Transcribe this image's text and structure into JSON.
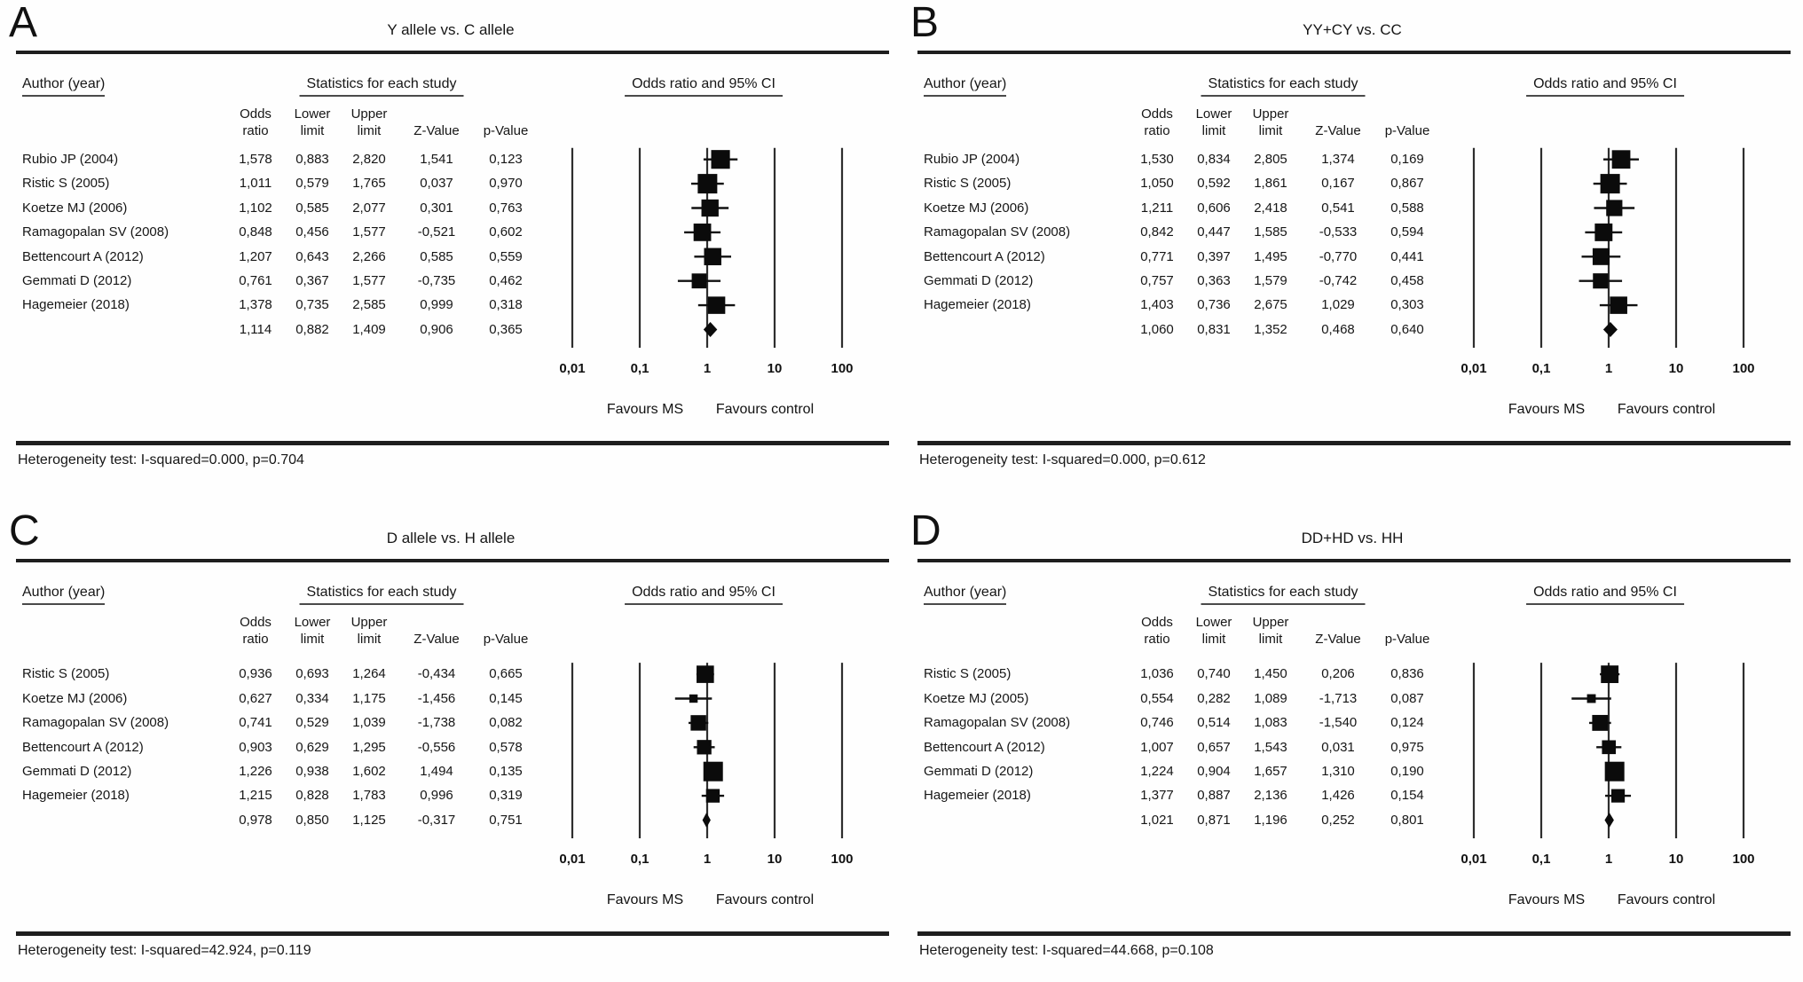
{
  "figure": {
    "bg": "#fefefe",
    "ink": "#161616",
    "axis_ticks": [
      "0,01",
      "0,1",
      "1",
      "10",
      "100"
    ],
    "favours_left": "Favours MS",
    "favours_right": "Favours control",
    "col_headers": {
      "author": "Author (year)",
      "stats": "Statistics for each study",
      "plot": "Odds ratio and 95% CI"
    },
    "sub_headers": {
      "odds_l1": "Odds",
      "odds_l2": "ratio",
      "lower_l1": "Lower",
      "lower_l2": "limit",
      "upper_l1": "Upper",
      "upper_l2": "limit",
      "z": "Z-Value",
      "p": "p-Value"
    },
    "panels": [
      {
        "label": "A",
        "title": "Y allele vs. C allele",
        "rows": [
          {
            "author": "Rubio JP (2004)",
            "or": "1,578",
            "lower": "0,883",
            "upper": "2,820",
            "z": "1,541",
            "p": "0,123"
          },
          {
            "author": "Ristic S (2005)",
            "or": "1,011",
            "lower": "0,579",
            "upper": "1,765",
            "z": "0,037",
            "p": "0,970"
          },
          {
            "author": "Koetze MJ (2006)",
            "or": "1,102",
            "lower": "0,585",
            "upper": "2,077",
            "z": "0,301",
            "p": "0,763"
          },
          {
            "author": "Ramagopalan SV (2008)",
            "or": "0,848",
            "lower": "0,456",
            "upper": "1,577",
            "z": "-0,521",
            "p": "0,602"
          },
          {
            "author": "Bettencourt A (2012)",
            "or": "1,207",
            "lower": "0,643",
            "upper": "2,266",
            "z": "0,585",
            "p": "0,559"
          },
          {
            "author": "Gemmati D (2012)",
            "or": "0,761",
            "lower": "0,367",
            "upper": "1,577",
            "z": "-0,735",
            "p": "0,462"
          },
          {
            "author": "Hagemeier (2018)",
            "or": "1,378",
            "lower": "0,735",
            "upper": "2,585",
            "z": "0,999",
            "p": "0,318"
          }
        ],
        "summary": {
          "author": "",
          "or": "1,114",
          "lower": "0,882",
          "upper": "1,409",
          "z": "0,906",
          "p": "0,365"
        },
        "heterogeneity": "Heterogeneity test: I-squared=0.000, p=0.704"
      },
      {
        "label": "B",
        "title": "YY+CY vs. CC",
        "rows": [
          {
            "author": "Rubio JP (2004)",
            "or": "1,530",
            "lower": "0,834",
            "upper": "2,805",
            "z": "1,374",
            "p": "0,169"
          },
          {
            "author": "Ristic S (2005)",
            "or": "1,050",
            "lower": "0,592",
            "upper": "1,861",
            "z": "0,167",
            "p": "0,867"
          },
          {
            "author": "Koetze MJ (2006)",
            "or": "1,211",
            "lower": "0,606",
            "upper": "2,418",
            "z": "0,541",
            "p": "0,588"
          },
          {
            "author": "Ramagopalan SV (2008)",
            "or": "0,842",
            "lower": "0,447",
            "upper": "1,585",
            "z": "-0,533",
            "p": "0,594"
          },
          {
            "author": "Bettencourt A (2012)",
            "or": "0,771",
            "lower": "0,397",
            "upper": "1,495",
            "z": "-0,770",
            "p": "0,441"
          },
          {
            "author": "Gemmati D (2012)",
            "or": "0,757",
            "lower": "0,363",
            "upper": "1,579",
            "z": "-0,742",
            "p": "0,458"
          },
          {
            "author": "Hagemeier (2018)",
            "or": "1,403",
            "lower": "0,736",
            "upper": "2,675",
            "z": "1,029",
            "p": "0,303"
          }
        ],
        "summary": {
          "author": "",
          "or": "1,060",
          "lower": "0,831",
          "upper": "1,352",
          "z": "0,468",
          "p": "0,640"
        },
        "heterogeneity": "Heterogeneity test: I-squared=0.000, p=0.612"
      },
      {
        "label": "C",
        "title": "D allele vs. H allele",
        "rows": [
          {
            "author": "Ristic S (2005)",
            "or": "0,936",
            "lower": "0,693",
            "upper": "1,264",
            "z": "-0,434",
            "p": "0,665"
          },
          {
            "author": "Koetze MJ (2006)",
            "or": "0,627",
            "lower": "0,334",
            "upper": "1,175",
            "z": "-1,456",
            "p": "0,145"
          },
          {
            "author": "Ramagopalan SV (2008)",
            "or": "0,741",
            "lower": "0,529",
            "upper": "1,039",
            "z": "-1,738",
            "p": "0,082"
          },
          {
            "author": "Bettencourt A (2012)",
            "or": "0,903",
            "lower": "0,629",
            "upper": "1,295",
            "z": "-0,556",
            "p": "0,578"
          },
          {
            "author": "Gemmati D (2012)",
            "or": "1,226",
            "lower": "0,938",
            "upper": "1,602",
            "z": "1,494",
            "p": "0,135"
          },
          {
            "author": "Hagemeier (2018)",
            "or": "1,215",
            "lower": "0,828",
            "upper": "1,783",
            "z": "0,996",
            "p": "0,319"
          }
        ],
        "summary": {
          "author": "",
          "or": "0,978",
          "lower": "0,850",
          "upper": "1,125",
          "z": "-0,317",
          "p": "0,751"
        },
        "heterogeneity": "Heterogeneity test: I-squared=42.924, p=0.119"
      },
      {
        "label": "D",
        "title": "DD+HD vs. HH",
        "rows": [
          {
            "author": "Ristic S (2005)",
            "or": "1,036",
            "lower": "0,740",
            "upper": "1,450",
            "z": "0,206",
            "p": "0,836"
          },
          {
            "author": "Koetze MJ (2005)",
            "or": "0,554",
            "lower": "0,282",
            "upper": "1,089",
            "z": "-1,713",
            "p": "0,087"
          },
          {
            "author": "Ramagopalan SV (2008)",
            "or": "0,746",
            "lower": "0,514",
            "upper": "1,083",
            "z": "-1,540",
            "p": "0,124"
          },
          {
            "author": "Bettencourt A (2012)",
            "or": "1,007",
            "lower": "0,657",
            "upper": "1,543",
            "z": "0,031",
            "p": "0,975"
          },
          {
            "author": "Gemmati D (2012)",
            "or": "1,224",
            "lower": "0,904",
            "upper": "1,657",
            "z": "1,310",
            "p": "0,190"
          },
          {
            "author": "Hagemeier (2018)",
            "or": "1,377",
            "lower": "0,887",
            "upper": "2,136",
            "z": "1,426",
            "p": "0,154"
          }
        ],
        "summary": {
          "author": "",
          "or": "1,021",
          "lower": "0,871",
          "upper": "1,196",
          "z": "0,252",
          "p": "0,801"
        },
        "heterogeneity": "Heterogeneity test: I-squared=44.668, p=0.108"
      }
    ]
  },
  "chart_data": [
    {
      "type": "scatter",
      "variant": "forest_plot",
      "title": "Y allele vs. C allele",
      "x_scale": "log",
      "xlim": [
        0.01,
        100
      ],
      "x_ticks": [
        0.01,
        0.1,
        1,
        10,
        100
      ],
      "x_tick_labels": [
        "0,01",
        "0,1",
        "1",
        "10",
        "100"
      ],
      "direction_labels": {
        "left": "Favours MS",
        "right": "Favours control"
      },
      "studies": [
        {
          "name": "Rubio JP (2004)",
          "or": 1.578,
          "ci_low": 0.883,
          "ci_high": 2.82,
          "z": 1.541,
          "p": 0.123
        },
        {
          "name": "Ristic S (2005)",
          "or": 1.011,
          "ci_low": 0.579,
          "ci_high": 1.765,
          "z": 0.037,
          "p": 0.97
        },
        {
          "name": "Koetze MJ (2006)",
          "or": 1.102,
          "ci_low": 0.585,
          "ci_high": 2.077,
          "z": 0.301,
          "p": 0.763
        },
        {
          "name": "Ramagopalan SV (2008)",
          "or": 0.848,
          "ci_low": 0.456,
          "ci_high": 1.577,
          "z": -0.521,
          "p": 0.602
        },
        {
          "name": "Bettencourt A (2012)",
          "or": 1.207,
          "ci_low": 0.643,
          "ci_high": 2.266,
          "z": 0.585,
          "p": 0.559
        },
        {
          "name": "Gemmati D (2012)",
          "or": 0.761,
          "ci_low": 0.367,
          "ci_high": 1.577,
          "z": -0.735,
          "p": 0.462
        },
        {
          "name": "Hagemeier (2018)",
          "or": 1.378,
          "ci_low": 0.735,
          "ci_high": 2.585,
          "z": 0.999,
          "p": 0.318
        }
      ],
      "summary": {
        "or": 1.114,
        "ci_low": 0.882,
        "ci_high": 1.409,
        "z": 0.906,
        "p": 0.365
      },
      "heterogeneity": {
        "i_squared": 0.0,
        "p": 0.704
      }
    },
    {
      "type": "scatter",
      "variant": "forest_plot",
      "title": "YY+CY vs. CC",
      "x_scale": "log",
      "xlim": [
        0.01,
        100
      ],
      "x_ticks": [
        0.01,
        0.1,
        1,
        10,
        100
      ],
      "x_tick_labels": [
        "0,01",
        "0,1",
        "1",
        "10",
        "100"
      ],
      "direction_labels": {
        "left": "Favours MS",
        "right": "Favours control"
      },
      "studies": [
        {
          "name": "Rubio JP (2004)",
          "or": 1.53,
          "ci_low": 0.834,
          "ci_high": 2.805,
          "z": 1.374,
          "p": 0.169
        },
        {
          "name": "Ristic S (2005)",
          "or": 1.05,
          "ci_low": 0.592,
          "ci_high": 1.861,
          "z": 0.167,
          "p": 0.867
        },
        {
          "name": "Koetze MJ (2006)",
          "or": 1.211,
          "ci_low": 0.606,
          "ci_high": 2.418,
          "z": 0.541,
          "p": 0.588
        },
        {
          "name": "Ramagopalan SV (2008)",
          "or": 0.842,
          "ci_low": 0.447,
          "ci_high": 1.585,
          "z": -0.533,
          "p": 0.594
        },
        {
          "name": "Bettencourt A (2012)",
          "or": 0.771,
          "ci_low": 0.397,
          "ci_high": 1.495,
          "z": -0.77,
          "p": 0.441
        },
        {
          "name": "Gemmati D (2012)",
          "or": 0.757,
          "ci_low": 0.363,
          "ci_high": 1.579,
          "z": -0.742,
          "p": 0.458
        },
        {
          "name": "Hagemeier (2018)",
          "or": 1.403,
          "ci_low": 0.736,
          "ci_high": 2.675,
          "z": 1.029,
          "p": 0.303
        }
      ],
      "summary": {
        "or": 1.06,
        "ci_low": 0.831,
        "ci_high": 1.352,
        "z": 0.468,
        "p": 0.64
      },
      "heterogeneity": {
        "i_squared": 0.0,
        "p": 0.612
      }
    },
    {
      "type": "scatter",
      "variant": "forest_plot",
      "title": "D allele vs. H allele",
      "x_scale": "log",
      "xlim": [
        0.01,
        100
      ],
      "x_ticks": [
        0.01,
        0.1,
        1,
        10,
        100
      ],
      "x_tick_labels": [
        "0,01",
        "0,1",
        "1",
        "10",
        "100"
      ],
      "direction_labels": {
        "left": "Favours MS",
        "right": "Favours control"
      },
      "studies": [
        {
          "name": "Ristic S (2005)",
          "or": 0.936,
          "ci_low": 0.693,
          "ci_high": 1.264,
          "z": -0.434,
          "p": 0.665
        },
        {
          "name": "Koetze MJ (2006)",
          "or": 0.627,
          "ci_low": 0.334,
          "ci_high": 1.175,
          "z": -1.456,
          "p": 0.145
        },
        {
          "name": "Ramagopalan SV (2008)",
          "or": 0.741,
          "ci_low": 0.529,
          "ci_high": 1.039,
          "z": -1.738,
          "p": 0.082
        },
        {
          "name": "Bettencourt A (2012)",
          "or": 0.903,
          "ci_low": 0.629,
          "ci_high": 1.295,
          "z": -0.556,
          "p": 0.578
        },
        {
          "name": "Gemmati D (2012)",
          "or": 1.226,
          "ci_low": 0.938,
          "ci_high": 1.602,
          "z": 1.494,
          "p": 0.135
        },
        {
          "name": "Hagemeier (2018)",
          "or": 1.215,
          "ci_low": 0.828,
          "ci_high": 1.783,
          "z": 0.996,
          "p": 0.319
        }
      ],
      "summary": {
        "or": 0.978,
        "ci_low": 0.85,
        "ci_high": 1.125,
        "z": -0.317,
        "p": 0.751
      },
      "heterogeneity": {
        "i_squared": 42.924,
        "p": 0.119
      }
    },
    {
      "type": "scatter",
      "variant": "forest_plot",
      "title": "DD+HD vs. HH",
      "x_scale": "log",
      "xlim": [
        0.01,
        100
      ],
      "x_ticks": [
        0.01,
        0.1,
        1,
        10,
        100
      ],
      "x_tick_labels": [
        "0,01",
        "0,1",
        "1",
        "10",
        "100"
      ],
      "direction_labels": {
        "left": "Favours MS",
        "right": "Favours control"
      },
      "studies": [
        {
          "name": "Ristic S (2005)",
          "or": 1.036,
          "ci_low": 0.74,
          "ci_high": 1.45,
          "z": 0.206,
          "p": 0.836
        },
        {
          "name": "Koetze MJ (2005)",
          "or": 0.554,
          "ci_low": 0.282,
          "ci_high": 1.089,
          "z": -1.713,
          "p": 0.087
        },
        {
          "name": "Ramagopalan SV (2008)",
          "or": 0.746,
          "ci_low": 0.514,
          "ci_high": 1.083,
          "z": -1.54,
          "p": 0.124
        },
        {
          "name": "Bettencourt A (2012)",
          "or": 1.007,
          "ci_low": 0.657,
          "ci_high": 1.543,
          "z": 0.031,
          "p": 0.975
        },
        {
          "name": "Gemmati D (2012)",
          "or": 1.224,
          "ci_low": 0.904,
          "ci_high": 1.657,
          "z": 1.31,
          "p": 0.19
        },
        {
          "name": "Hagemeier (2018)",
          "or": 1.377,
          "ci_low": 0.887,
          "ci_high": 2.136,
          "z": 1.426,
          "p": 0.154
        }
      ],
      "summary": {
        "or": 1.021,
        "ci_low": 0.871,
        "ci_high": 1.196,
        "z": 0.252,
        "p": 0.801
      },
      "heterogeneity": {
        "i_squared": 44.668,
        "p": 0.108
      }
    }
  ]
}
